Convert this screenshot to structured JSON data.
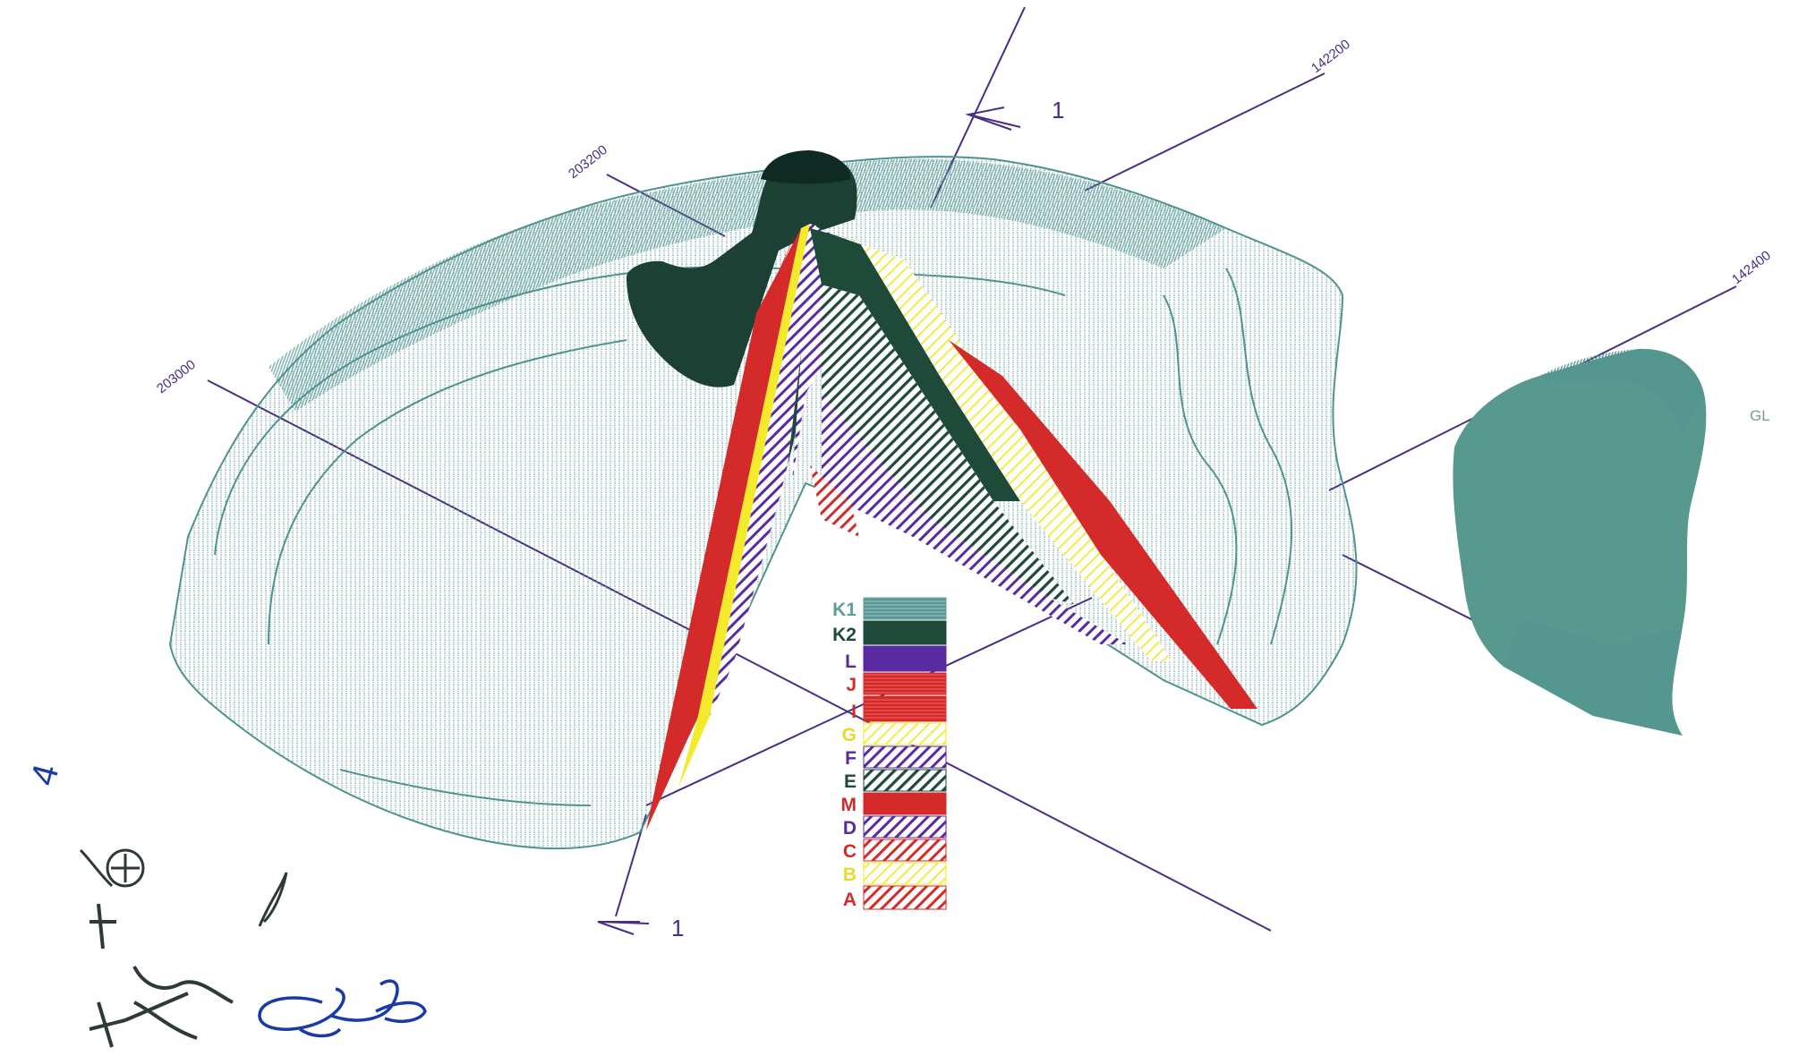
{
  "annotations": {
    "coord_203000": "203000",
    "coord_203200": "203200",
    "coord_142200": "142200",
    "coord_142400": "142400",
    "section_marker_top": "1",
    "section_marker_bottom": "1",
    "side_label": "GL",
    "handwritten_number": "4"
  },
  "legend": {
    "items": [
      {
        "label": "K1",
        "color": "#5f9e9a",
        "pattern": "dense-lines"
      },
      {
        "label": "K2",
        "color": "#1f4a3a",
        "pattern": "solid"
      },
      {
        "label": "L",
        "color": "#5a2aa0",
        "pattern": "solid"
      },
      {
        "label": "J",
        "color": "#d42a2a",
        "pattern": "dense-lines"
      },
      {
        "label": "I",
        "color": "#d42a2a",
        "pattern": "dense-lines"
      },
      {
        "label": "G",
        "color": "#f2ea2a",
        "pattern": "hatch"
      },
      {
        "label": "F",
        "color": "#5a2aa0",
        "pattern": "hatch"
      },
      {
        "label": "E",
        "color": "#1f4a3a",
        "pattern": "hatch"
      },
      {
        "label": "M",
        "color": "#d42a2a",
        "pattern": "solid"
      },
      {
        "label": "D",
        "color": "#5a2aa0",
        "pattern": "hatch"
      },
      {
        "label": "C",
        "color": "#d42a2a",
        "pattern": "hatch"
      },
      {
        "label": "B",
        "color": "#f2ea2a",
        "pattern": "hatch"
      },
      {
        "label": "A",
        "color": "#d42a2a",
        "pattern": "hatch"
      }
    ]
  },
  "colors": {
    "mesh": "#4f9390",
    "axis": "#4a2d86",
    "peak": "#1c4034",
    "ink_blue": "#1a3aa8",
    "ink_dark": "#2c3a38"
  }
}
